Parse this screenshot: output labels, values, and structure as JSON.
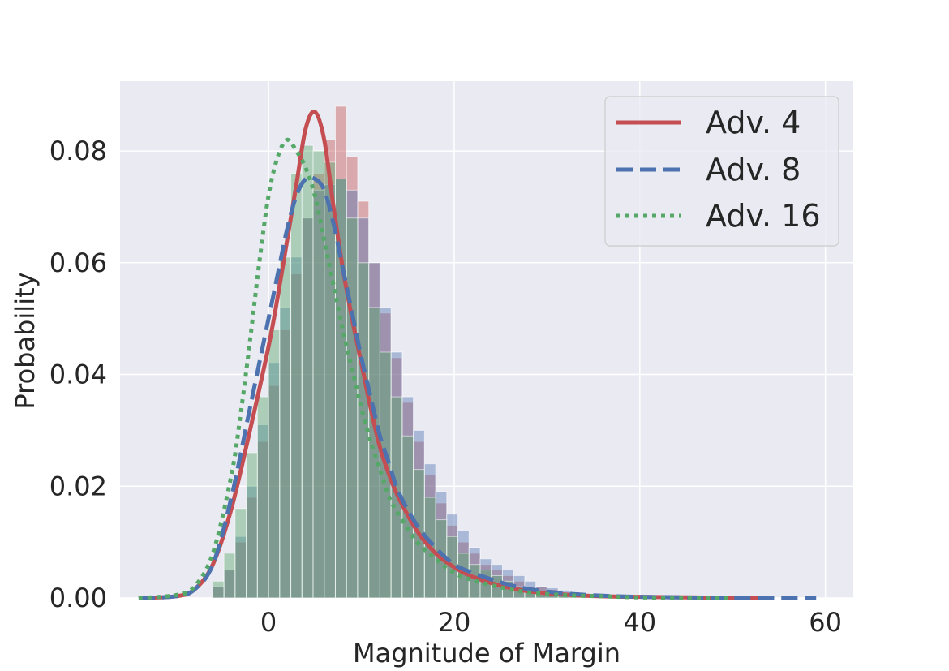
{
  "chart_data": {
    "type": "histogram",
    "title": "",
    "xlabel": "Magnitude of Margin",
    "ylabel": "Probability",
    "xlim": [
      -16,
      63
    ],
    "ylim": [
      0,
      0.0925
    ],
    "xticks": [
      0,
      20,
      40,
      60
    ],
    "xtick_labels": [
      "0",
      "20",
      "40",
      "60"
    ],
    "yticks": [
      0,
      0.02,
      0.04,
      0.06,
      0.08
    ],
    "ytick_labels": [
      "0.00",
      "0.02",
      "0.04",
      "0.06",
      "0.08"
    ],
    "grid": true,
    "legend_position": "top-right",
    "bin_width": 1.2,
    "series": [
      {
        "name": "Adv. 4",
        "color": "#c44e52",
        "line_style": "solid",
        "histogram": {
          "bin_start": -6,
          "values": [
            0.002,
            0.005,
            0.01,
            0.018,
            0.028,
            0.038,
            0.048,
            0.058,
            0.068,
            0.076,
            0.082,
            0.088,
            0.079,
            0.071,
            0.06,
            0.051,
            0.043,
            0.035,
            0.028,
            0.022,
            0.017,
            0.013,
            0.01,
            0.008,
            0.006,
            0.005,
            0.004,
            0.003,
            0.002,
            0.002,
            0.0015,
            0.001,
            0.0008,
            0.0006,
            0.0005,
            0.0004
          ]
        },
        "kde": {
          "x": [
            -14,
            -10,
            -8,
            -6,
            -4,
            -2,
            0,
            1,
            2,
            3,
            4,
            5,
            6,
            7,
            8,
            9,
            10,
            11,
            12,
            13,
            14,
            16,
            18,
            20,
            22,
            25,
            28,
            32,
            36,
            40,
            45,
            50,
            54
          ],
          "y": [
            0,
            0.0003,
            0.0015,
            0.006,
            0.016,
            0.03,
            0.045,
            0.054,
            0.064,
            0.074,
            0.084,
            0.087,
            0.082,
            0.07,
            0.059,
            0.05,
            0.042,
            0.034,
            0.027,
            0.022,
            0.018,
            0.012,
            0.008,
            0.0055,
            0.0038,
            0.0022,
            0.0012,
            0.0006,
            0.0003,
            0.0002,
            0.0001,
            5e-05,
            0
          ]
        }
      },
      {
        "name": "Adv. 8",
        "color": "#4c72b0",
        "line_style": "dashed",
        "histogram": {
          "bin_start": -6,
          "values": [
            0.002,
            0.005,
            0.011,
            0.02,
            0.031,
            0.042,
            0.052,
            0.061,
            0.068,
            0.073,
            0.074,
            0.075,
            0.073,
            0.068,
            0.06,
            0.052,
            0.044,
            0.036,
            0.03,
            0.024,
            0.019,
            0.015,
            0.012,
            0.009,
            0.007,
            0.006,
            0.005,
            0.004,
            0.003,
            0.002,
            0.0018,
            0.0014,
            0.001,
            0.0008,
            0.0006,
            0.0005
          ]
        },
        "kde": {
          "x": [
            -14,
            -10,
            -8,
            -6,
            -4,
            -2,
            0,
            1,
            2,
            3,
            4,
            5,
            6,
            7,
            8,
            9,
            10,
            11,
            12,
            13,
            14,
            16,
            18,
            20,
            22,
            25,
            28,
            32,
            36,
            40,
            45,
            50,
            55,
            59
          ],
          "y": [
            0,
            0.0003,
            0.0015,
            0.006,
            0.018,
            0.034,
            0.05,
            0.058,
            0.066,
            0.072,
            0.075,
            0.075,
            0.073,
            0.067,
            0.059,
            0.051,
            0.043,
            0.036,
            0.029,
            0.024,
            0.019,
            0.013,
            0.009,
            0.006,
            0.0045,
            0.0028,
            0.0016,
            0.0008,
            0.0004,
            0.0002,
            0.0001,
            5e-05,
            2e-05,
            0
          ]
        }
      },
      {
        "name": "Adv. 16",
        "color": "#55a868",
        "line_style": "dotted",
        "histogram": {
          "bin_start": -6,
          "values": [
            0.003,
            0.008,
            0.016,
            0.026,
            0.036,
            0.048,
            0.061,
            0.076,
            0.081,
            0.08,
            0.078,
            0.075,
            0.068,
            0.06,
            0.052,
            0.044,
            0.036,
            0.029,
            0.023,
            0.018,
            0.014,
            0.011,
            0.008,
            0.006,
            0.005,
            0.004,
            0.003,
            0.002,
            0.0016,
            0.0012,
            0.001,
            0.0008,
            0.0006,
            0.0005,
            0.0004,
            0.0003
          ]
        },
        "kde": {
          "x": [
            -14,
            -10,
            -8,
            -6,
            -4,
            -3,
            -2,
            -1,
            0,
            1,
            2,
            3,
            4,
            5,
            6,
            7,
            8,
            9,
            10,
            11,
            12,
            13,
            14,
            16,
            18,
            20,
            22,
            25,
            28,
            32,
            36,
            40,
            45,
            50
          ],
          "y": [
            0,
            0.0005,
            0.002,
            0.008,
            0.022,
            0.033,
            0.046,
            0.06,
            0.072,
            0.079,
            0.082,
            0.08,
            0.077,
            0.072,
            0.064,
            0.056,
            0.048,
            0.041,
            0.034,
            0.028,
            0.023,
            0.018,
            0.015,
            0.01,
            0.007,
            0.0045,
            0.0032,
            0.0019,
            0.001,
            0.0005,
            0.0003,
            0.0001,
            5e-05,
            0
          ]
        }
      }
    ]
  }
}
